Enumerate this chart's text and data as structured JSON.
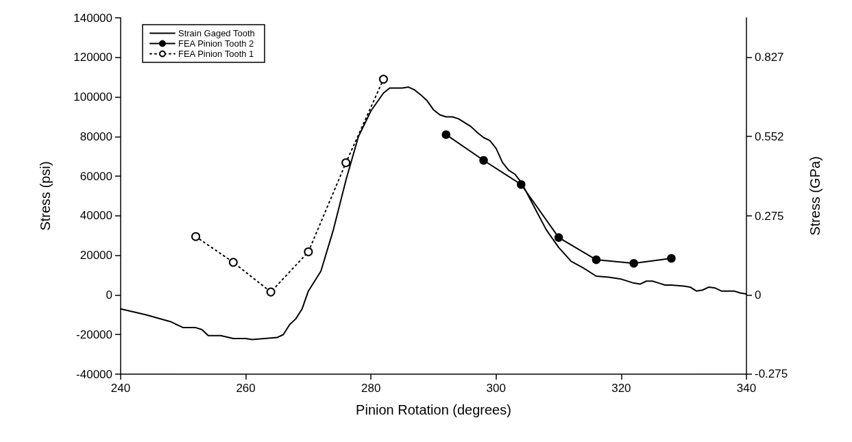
{
  "chart_data": {
    "type": "line",
    "xlabel": "Pinion Rotation (degrees)",
    "ylabel": "Stress (psi)",
    "y2label": "Stress (GPa)",
    "xlim": [
      240,
      340
    ],
    "xticks": [
      240,
      260,
      280,
      300,
      320,
      340
    ],
    "ylim": [
      -40000,
      140000
    ],
    "yticks": [
      -40000,
      -20000,
      0,
      20000,
      40000,
      60000,
      80000,
      100000,
      120000,
      140000
    ],
    "y2lim": [
      -0.2758,
      0.9653
    ],
    "y2ticks": [
      -0.275,
      0,
      0.275,
      0.552,
      0.827
    ],
    "grid": false,
    "legend": "top left",
    "series": [
      {
        "name": "Strain Gaged Tooth",
        "color": "#000000",
        "marker": "none",
        "line_style": "solid",
        "x": [
          240,
          244,
          248,
          250,
          252,
          253,
          254,
          256,
          258,
          260,
          261,
          263,
          265,
          266,
          267,
          268,
          269,
          270,
          272,
          274,
          276,
          278,
          280,
          282,
          283,
          284,
          285,
          286,
          287,
          288,
          289,
          290,
          291,
          292,
          293,
          294,
          296,
          297,
          298,
          299,
          300,
          301,
          302,
          303,
          304,
          306,
          308,
          310,
          312,
          314,
          316,
          318,
          320,
          322,
          323,
          324,
          325,
          326,
          327,
          328,
          330,
          331,
          332,
          333,
          334,
          335,
          336,
          337,
          338,
          339,
          340
        ],
        "values": [
          -7000,
          -10000,
          -13500,
          -16500,
          -16500,
          -17500,
          -20500,
          -20500,
          -22000,
          -22000,
          -22500,
          -22000,
          -21500,
          -20000,
          -15000,
          -12000,
          -7000,
          2000,
          12000,
          33000,
          58000,
          80000,
          93000,
          102000,
          104500,
          104500,
          104500,
          105000,
          103500,
          101000,
          98000,
          93500,
          91000,
          90000,
          90000,
          89000,
          85000,
          82000,
          79500,
          78000,
          74000,
          67000,
          63000,
          61000,
          57000,
          45000,
          33000,
          24000,
          17000,
          13500,
          9500,
          9000,
          8000,
          6000,
          5500,
          7000,
          7000,
          6000,
          5000,
          5000,
          4500,
          4000,
          2000,
          2500,
          4000,
          3500,
          2000,
          2000,
          2000,
          1000,
          500
        ]
      },
      {
        "name": "FEA Pinion Tooth 2",
        "color": "#000000",
        "marker": "circle",
        "line_style": "solid",
        "x": [
          292,
          298,
          304,
          310,
          316,
          322,
          328
        ],
        "values": [
          81000,
          68000,
          55800,
          29000,
          17800,
          16000,
          18500
        ]
      },
      {
        "name": "FEA Pinion Tooth 1",
        "color": "#000000",
        "marker": "circle",
        "line_style": "dotted",
        "x": [
          252,
          258,
          264,
          270,
          276,
          282
        ],
        "values": [
          29500,
          16500,
          1500,
          21800,
          66800,
          109000
        ]
      }
    ]
  }
}
